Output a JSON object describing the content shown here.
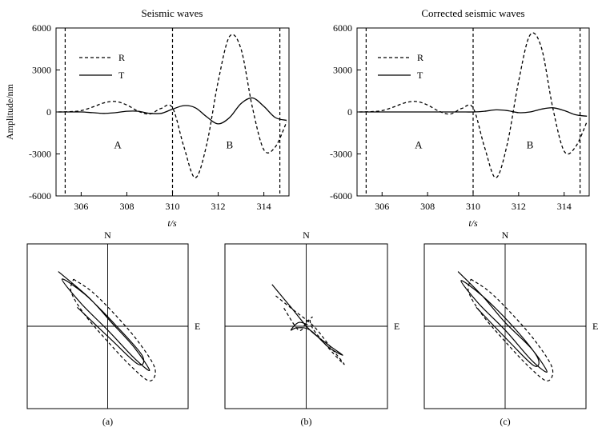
{
  "chart_data": [
    {
      "type": "line",
      "title": "Seismic waves",
      "xlabel": "t/s",
      "ylabel": "Amplitude/nm",
      "xlim": [
        304.9,
        315.1
      ],
      "ylim": [
        -6000,
        6000
      ],
      "xticks": [
        306,
        308,
        310,
        312,
        314
      ],
      "yticks": [
        -6000,
        -3000,
        0,
        3000,
        6000
      ],
      "grid": false,
      "legend": "top-left",
      "vlines": [
        305.3,
        310.0,
        314.7
      ],
      "region_labels": [
        {
          "text": "A",
          "x": 307.6,
          "y": -2600
        },
        {
          "text": "B",
          "x": 312.5,
          "y": -2600
        }
      ],
      "series": [
        {
          "name": "R",
          "style": "dashed",
          "x": [
            305,
            305.5,
            306,
            306.5,
            307,
            307.5,
            308,
            308.5,
            309,
            309.5,
            310,
            310.5,
            311,
            311.5,
            312,
            312.5,
            313,
            313.5,
            314,
            314.5,
            315
          ],
          "y": [
            0,
            20,
            100,
            350,
            650,
            750,
            500,
            50,
            -150,
            250,
            300,
            -2500,
            -4700,
            -2300,
            2200,
            5400,
            4500,
            300,
            -2700,
            -2500,
            -700
          ]
        },
        {
          "name": "T",
          "style": "solid",
          "x": [
            305,
            305.5,
            306,
            306.5,
            307,
            307.5,
            308,
            308.5,
            309,
            309.5,
            310,
            310.5,
            311,
            311.5,
            312,
            312.5,
            313,
            313.5,
            314,
            314.5,
            315
          ],
          "y": [
            0,
            0,
            0,
            -50,
            -100,
            -50,
            50,
            50,
            -100,
            -100,
            200,
            450,
            300,
            -350,
            -850,
            -400,
            600,
            1000,
            400,
            -400,
            -600
          ]
        }
      ]
    },
    {
      "type": "line",
      "title": "Corrected seismic waves",
      "xlabel": "t/s",
      "ylabel": "",
      "xlim": [
        304.9,
        315.1
      ],
      "ylim": [
        -6000,
        6000
      ],
      "xticks": [
        306,
        308,
        310,
        312,
        314
      ],
      "yticks": [
        -6000,
        -3000,
        0,
        3000,
        6000
      ],
      "grid": false,
      "legend": "top-left",
      "vlines": [
        305.3,
        310.0,
        314.7
      ],
      "region_labels": [
        {
          "text": "A",
          "x": 307.6,
          "y": -2600
        },
        {
          "text": "B",
          "x": 312.5,
          "y": -2600
        }
      ],
      "series": [
        {
          "name": "R",
          "style": "dashed",
          "x": [
            305,
            305.5,
            306,
            306.5,
            307,
            307.5,
            308,
            308.5,
            309,
            309.5,
            310,
            310.5,
            311,
            311.5,
            312,
            312.5,
            313,
            313.5,
            314,
            314.5,
            315
          ],
          "y": [
            0,
            20,
            100,
            350,
            650,
            750,
            500,
            50,
            -150,
            250,
            300,
            -2500,
            -4700,
            -2300,
            2200,
            5500,
            4600,
            300,
            -2800,
            -2500,
            -700
          ]
        },
        {
          "name": "T",
          "style": "solid",
          "x": [
            305,
            305.5,
            306,
            306.5,
            307,
            307.5,
            308,
            308.5,
            309,
            309.5,
            310,
            310.5,
            311,
            311.5,
            312,
            312.5,
            313,
            313.5,
            314,
            314.5,
            315
          ],
          "y": [
            0,
            0,
            0,
            0,
            0,
            0,
            0,
            0,
            0,
            0,
            0,
            50,
            150,
            100,
            -50,
            0,
            200,
            300,
            100,
            -200,
            -300
          ]
        }
      ]
    },
    {
      "type": "line",
      "caption": "(a)",
      "axis_labels": {
        "north": "N",
        "east": "E"
      },
      "lim": [
        -1,
        1
      ],
      "series": [
        {
          "name": "solid",
          "style": "solid",
          "x": [
            -0.65,
            -0.25,
            0.05,
            0.35,
            0.55,
            0.35,
            0.0,
            -0.35,
            -0.6,
            -0.3,
            0.1,
            0.45,
            0.4,
            0.05,
            -0.4
          ],
          "y": [
            0.72,
            0.38,
            0.05,
            -0.28,
            -0.58,
            -0.42,
            -0.05,
            0.3,
            0.62,
            0.42,
            0.02,
            -0.38,
            -0.5,
            -0.18,
            0.25
          ]
        },
        {
          "name": "dashed",
          "style": "dashed",
          "x": [
            -0.45,
            -0.2,
            0.1,
            0.4,
            0.62,
            0.55,
            0.3,
            0.0,
            -0.3,
            -0.48,
            -0.45
          ],
          "y": [
            0.62,
            0.45,
            0.15,
            -0.2,
            -0.55,
            -0.72,
            -0.52,
            -0.2,
            0.15,
            0.45,
            0.62
          ]
        }
      ]
    },
    {
      "type": "line",
      "caption": "(b)",
      "axis_labels": {
        "north": "N",
        "east": "E"
      },
      "lim": [
        -1,
        1
      ],
      "series": [
        {
          "name": "solid",
          "style": "solid",
          "x": [
            -0.45,
            -0.2,
            0.05,
            0.3,
            0.48,
            0.3,
            0.05,
            -0.12,
            -0.2,
            -0.1,
            0.02
          ],
          "y": [
            0.55,
            0.25,
            -0.05,
            -0.25,
            -0.38,
            -0.28,
            -0.05,
            -0.02,
            -0.05,
            0.05,
            0.02
          ]
        },
        {
          "name": "dashed",
          "style": "dashed",
          "x": [
            -0.4,
            -0.15,
            0.1,
            0.3,
            0.5,
            0.35,
            0.1,
            0.05,
            0.08,
            0.0,
            -0.1,
            -0.3
          ],
          "y": [
            0.4,
            0.2,
            0.0,
            -0.25,
            -0.5,
            -0.35,
            -0.05,
            0.08,
            0.12,
            0.05,
            -0.05,
            0.25
          ]
        }
      ]
    },
    {
      "type": "line",
      "caption": "(c)",
      "axis_labels": {
        "north": "N",
        "east": "E"
      },
      "lim": [
        -1,
        1
      ],
      "series": [
        {
          "name": "solid",
          "style": "solid",
          "x": [
            -0.62,
            -0.3,
            0.0,
            0.35,
            0.55,
            0.35,
            0.0,
            -0.35,
            -0.58,
            -0.3,
            0.1,
            0.42,
            0.38,
            0.05,
            -0.38
          ],
          "y": [
            0.72,
            0.4,
            0.05,
            -0.3,
            -0.6,
            -0.45,
            -0.05,
            0.3,
            0.6,
            0.4,
            0.0,
            -0.4,
            -0.52,
            -0.2,
            0.25
          ]
        },
        {
          "name": "dashed",
          "style": "dashed",
          "x": [
            -0.45,
            -0.2,
            0.1,
            0.4,
            0.62,
            0.55,
            0.3,
            0.0,
            -0.3,
            -0.48,
            -0.45
          ],
          "y": [
            0.62,
            0.45,
            0.15,
            -0.2,
            -0.55,
            -0.72,
            -0.52,
            -0.2,
            0.15,
            0.45,
            0.62
          ]
        }
      ]
    }
  ]
}
